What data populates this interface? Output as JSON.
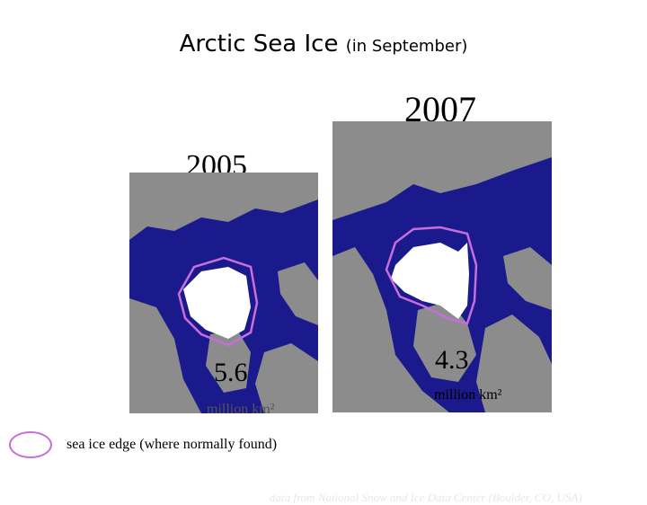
{
  "title": {
    "main": "Arctic Sea Ice",
    "sub": "(in September)"
  },
  "maps": [
    {
      "year": "2005",
      "value": "5.6",
      "unit": "million km²"
    },
    {
      "year": "2007",
      "value": "4.3",
      "unit": "million km²"
    }
  ],
  "legend": {
    "text": "sea ice edge (where normally found)"
  },
  "credit": "data from National Snow and Ice Data Center (Boulder, CO, USA)",
  "colors": {
    "ocean": "#1a1a8c",
    "land": "#8c8c8c",
    "ice": "#ffffff",
    "normal_edge": "#c86edc"
  }
}
